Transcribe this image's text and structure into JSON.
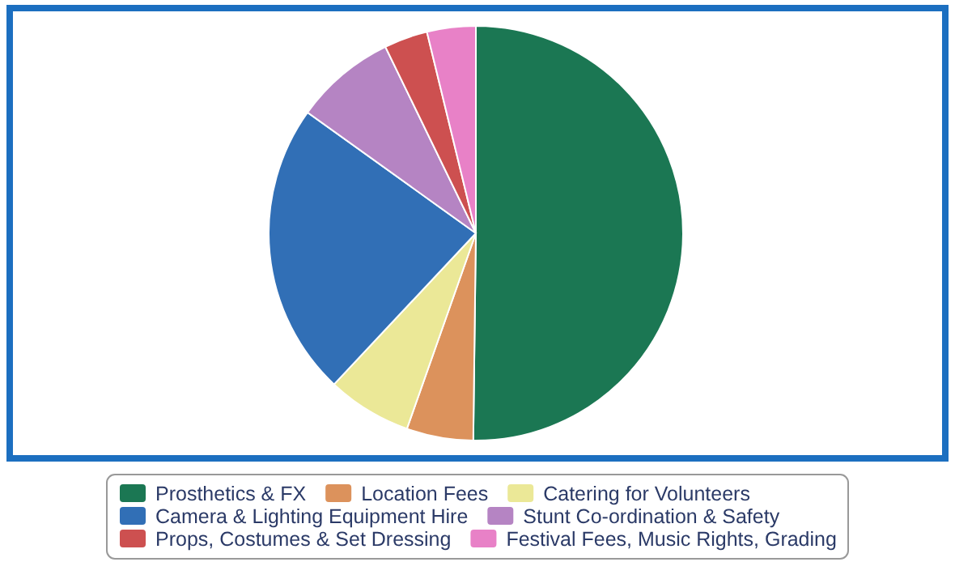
{
  "chart_data": {
    "type": "pie",
    "categories": [
      "Prosthetics & FX",
      "Location Fees",
      "Catering for Volunteers",
      "Camera & Lighting Equipment Hire",
      "Stunt Co-ordination & Safety",
      "Props, Costumes & Set Dressing",
      "Festival Fees, Music Rights, Grading"
    ],
    "values": [
      50.2,
      5.2,
      6.6,
      22.9,
      7.9,
      3.4,
      3.8
    ],
    "colors": [
      "#1b7753",
      "#dc925c",
      "#ebe897",
      "#316fb6",
      "#b584c3",
      "#cd5050",
      "#e881c7"
    ],
    "legend": "bottom"
  }
}
